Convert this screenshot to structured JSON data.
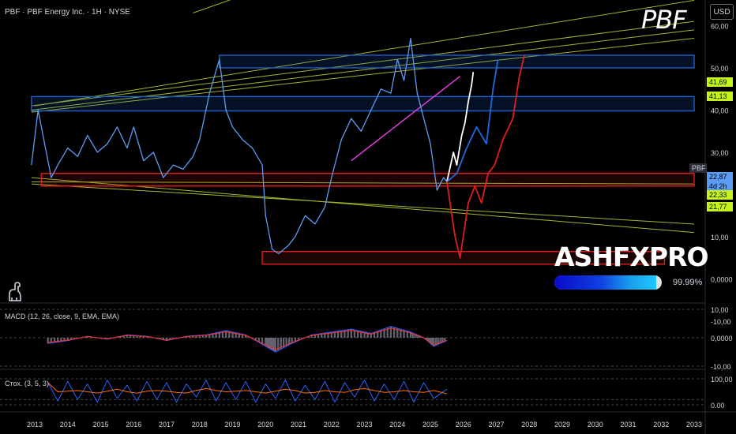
{
  "header": {
    "title": "PBF · PBF Energy Inc. · 1H · NYSE",
    "currency": "USD",
    "watermark": "PBF"
  },
  "branding": {
    "name": "ASHFXPRO",
    "meter_value": 0.95,
    "meter_label": "99.99%",
    "logo_icon": "dinosaur-icon"
  },
  "colors": {
    "price_line": "#5b9cf2",
    "zone_blue": "#1e5fc8",
    "zone_red": "#e01e1e",
    "trend_yellow": "#a6b52a",
    "trend_magenta": "#d63ad0",
    "projection_white": "#ffffff",
    "projection_blue": "#1e6be0",
    "projection_red": "#e01e1e",
    "macd_line": "#2962ff",
    "signal_line": "#ff2a2a",
    "stoch_k": "#2962ff",
    "stoch_d": "#ff6d00",
    "label_green": "#c5f31c",
    "label_blue": "#5b9cf2"
  },
  "price_panel": {
    "ticks": [
      "60,00",
      "50,00",
      "40,00",
      "30,00",
      "20,00",
      "10,00",
      "0,0000",
      "-10,00"
    ],
    "labels": [
      {
        "text": "41,69",
        "style": "green"
      },
      {
        "text": "41,13",
        "style": "green"
      },
      {
        "text": "PBF",
        "style": "tag"
      },
      {
        "text": "22,87",
        "style": "blue"
      },
      {
        "text": "4d 2h",
        "style": "blue"
      },
      {
        "text": "22,33",
        "style": "green"
      },
      {
        "text": "21,77",
        "style": "green"
      }
    ]
  },
  "macd_panel": {
    "title": "MACD (12, 26, close, 9, EMA, EMA)",
    "ticks": [
      "10,00",
      "0,0000",
      "-10,00"
    ]
  },
  "stoch_panel": {
    "title": "Стох. (3, 5, 3)",
    "ticks": [
      "100,00",
      "0.00"
    ]
  },
  "x_axis": {
    "ticks": [
      "2013",
      "2014",
      "2015",
      "2016",
      "2017",
      "2018",
      "2019",
      "2020",
      "2021",
      "2022",
      "2023",
      "2024",
      "2025",
      "2026",
      "2027",
      "2028",
      "2029",
      "2030",
      "2031",
      "2032",
      "2033"
    ]
  },
  "chart_data": {
    "type": "line",
    "ylim": [
      -10,
      60
    ],
    "price_series": {
      "x": [
        2012.9,
        2013.1,
        2013.3,
        2013.5,
        2013.7,
        2014.0,
        2014.3,
        2014.6,
        2014.9,
        2015.2,
        2015.5,
        2015.8,
        2016.0,
        2016.3,
        2016.6,
        2016.9,
        2017.2,
        2017.5,
        2017.8,
        2018.0,
        2018.3,
        2018.6,
        2018.8,
        2019.0,
        2019.3,
        2019.6,
        2019.9,
        2020.0,
        2020.2,
        2020.4,
        2020.7,
        2020.9,
        2021.2,
        2021.5,
        2021.8,
        2022.0,
        2022.3,
        2022.6,
        2022.9,
        2023.2,
        2023.5,
        2023.8,
        2024.0,
        2024.2,
        2024.4,
        2024.6,
        2024.8,
        2025.0,
        2025.2,
        2025.4,
        2025.5
      ],
      "values": [
        27,
        40,
        32,
        24,
        27,
        31,
        29,
        34,
        30,
        32,
        36,
        31,
        36,
        28,
        30,
        24,
        27,
        26,
        29,
        33,
        44,
        52,
        40,
        36,
        33,
        31,
        27,
        15,
        7,
        6,
        8,
        10,
        15,
        13,
        17,
        24,
        33,
        38,
        35,
        40,
        45,
        44,
        52,
        47,
        57,
        44,
        38,
        32,
        21,
        24,
        23
      ]
    },
    "projections": [
      {
        "color": "white",
        "x": [
          2025.5,
          2025.7,
          2025.8,
          2025.95,
          2026.05,
          2026.15,
          2026.25,
          2026.3
        ],
        "values": [
          23,
          30,
          27,
          34,
          37,
          42,
          46,
          49
        ]
      },
      {
        "color": "blue",
        "x": [
          2025.5,
          2025.8,
          2026.1,
          2026.4,
          2026.7,
          2026.9,
          2027.05
        ],
        "values": [
          23,
          25,
          31,
          36,
          32,
          45,
          52
        ]
      },
      {
        "color": "red",
        "x": [
          2025.5,
          2025.75,
          2025.9,
          2026.15,
          2026.35,
          2026.55,
          2026.75,
          2026.95,
          2027.2,
          2027.5,
          2027.7,
          2027.85
        ],
        "values": [
          23,
          10,
          5,
          18,
          22,
          18,
          25,
          27,
          33,
          38,
          48,
          53
        ]
      }
    ],
    "zones": [
      {
        "color": "blue",
        "x": [
          2018.6,
          2033
        ],
        "y": [
          50,
          53
        ]
      },
      {
        "color": "blue",
        "x": [
          2012.9,
          2033
        ],
        "y": [
          39.8,
          43.2
        ]
      },
      {
        "color": "red",
        "x": [
          2013.2,
          2033
        ],
        "y": [
          22,
          25
        ]
      },
      {
        "color": "red",
        "x": [
          2019.9,
          2032.1
        ],
        "y": [
          3.5,
          6.5
        ]
      }
    ],
    "macd": {
      "x": [
        2013.4,
        2014.0,
        2014.6,
        2015.2,
        2015.8,
        2016.4,
        2017.0,
        2017.6,
        2018.2,
        2018.8,
        2019.4,
        2020.0,
        2020.3,
        2020.8,
        2021.4,
        2022.0,
        2022.6,
        2023.2,
        2023.8,
        2024.4,
        2024.8,
        2025.1,
        2025.5
      ],
      "values": [
        -2,
        -1,
        0.5,
        -0.5,
        1,
        0.5,
        -1,
        0.5,
        1,
        2.5,
        1,
        -3,
        -5,
        -2,
        1,
        2,
        3,
        1.5,
        4,
        2,
        0,
        -3,
        -1
      ]
    },
    "stoch": {
      "x": [
        2013.4,
        2013.7,
        2014.0,
        2014.3,
        2014.6,
        2014.9,
        2015.2,
        2015.5,
        2015.8,
        2016.1,
        2016.4,
        2016.7,
        2017.0,
        2017.3,
        2017.6,
        2017.9,
        2018.2,
        2018.5,
        2018.8,
        2019.1,
        2019.4,
        2019.7,
        2020.0,
        2020.3,
        2020.6,
        2020.9,
        2021.2,
        2021.5,
        2021.8,
        2022.1,
        2022.4,
        2022.7,
        2023.0,
        2023.3,
        2023.6,
        2023.9,
        2024.2,
        2024.5,
        2024.8,
        2025.1,
        2025.5
      ],
      "values": [
        85,
        15,
        90,
        20,
        80,
        10,
        95,
        25,
        75,
        15,
        90,
        20,
        85,
        10,
        80,
        30,
        95,
        15,
        85,
        20,
        90,
        10,
        80,
        25,
        95,
        15,
        75,
        20,
        90,
        10,
        85,
        30,
        95,
        15,
        80,
        20,
        90,
        10,
        85,
        25,
        60
      ]
    }
  }
}
